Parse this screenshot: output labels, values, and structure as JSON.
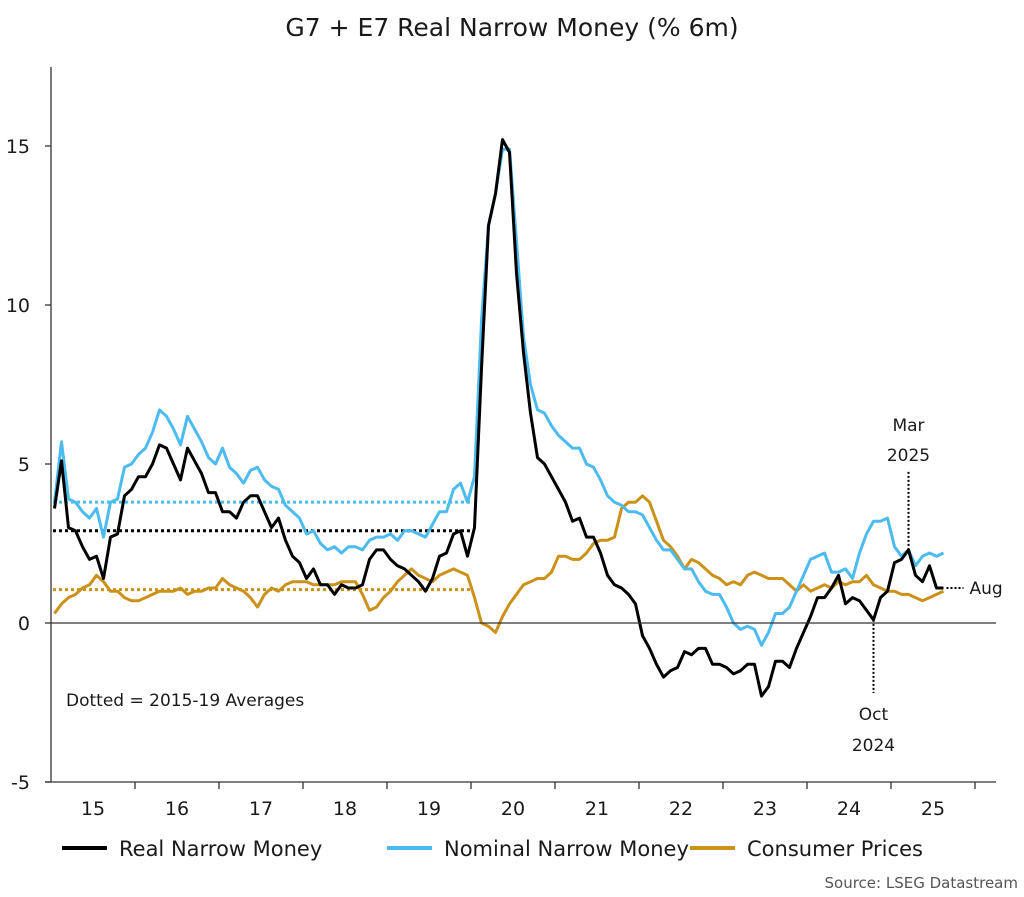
{
  "chart_data": {
    "type": "line",
    "title": "G7 + E7 Real Narrow Money (% 6m)",
    "xlabel": "",
    "ylabel": "",
    "x_start": "2015-01",
    "x_end": "2025-08",
    "frequency": "monthly",
    "ylim": [
      -5,
      17.5
    ],
    "yticks": [
      -5,
      0,
      5,
      10,
      15
    ],
    "ytick_labels": [
      "-5",
      "0",
      "5",
      "10",
      "15"
    ],
    "xtick_labels": [
      "15",
      "16",
      "17",
      "18",
      "19",
      "20",
      "21",
      "22",
      "23",
      "24",
      "25"
    ],
    "grid": false,
    "legend_position": "bottom",
    "series": [
      {
        "name": "Real Narrow Money",
        "color": "#000000",
        "average_2015_19": 2.9,
        "values": [
          3.6,
          5.1,
          3.0,
          2.9,
          2.4,
          2.0,
          2.1,
          1.4,
          2.7,
          2.8,
          4.0,
          4.2,
          4.6,
          4.6,
          5.0,
          5.6,
          5.5,
          5.0,
          4.5,
          5.5,
          5.1,
          4.7,
          4.1,
          4.1,
          3.5,
          3.5,
          3.3,
          3.8,
          4.0,
          4.0,
          3.5,
          3.0,
          3.3,
          2.6,
          2.1,
          1.9,
          1.4,
          1.7,
          1.2,
          1.2,
          0.9,
          1.2,
          1.1,
          1.1,
          1.2,
          2.0,
          2.3,
          2.3,
          2.0,
          1.8,
          1.7,
          1.5,
          1.3,
          1.0,
          1.4,
          2.1,
          2.2,
          2.8,
          2.9,
          2.1,
          3.0,
          8.0,
          12.5,
          13.5,
          15.2,
          14.8,
          11.0,
          8.5,
          6.6,
          5.2,
          5.0,
          4.6,
          4.2,
          3.8,
          3.2,
          3.3,
          2.7,
          2.7,
          2.2,
          1.5,
          1.2,
          1.1,
          0.9,
          0.6,
          -0.4,
          -0.8,
          -1.3,
          -1.7,
          -1.5,
          -1.4,
          -0.9,
          -1.0,
          -0.8,
          -0.8,
          -1.3,
          -1.3,
          -1.4,
          -1.6,
          -1.5,
          -1.3,
          -1.3,
          -2.3,
          -2.0,
          -1.2,
          -1.2,
          -1.4,
          -0.8,
          -0.3,
          0.2,
          0.8,
          0.8,
          1.1,
          1.5,
          0.6,
          0.8,
          0.7,
          0.4,
          0.1,
          0.8,
          1.0,
          1.9,
          2.0,
          2.3,
          1.5,
          1.3,
          1.8,
          1.1,
          1.1
        ]
      },
      {
        "name": "Nominal Narrow Money",
        "color": "#4bbbf0",
        "average_2015_19": 3.8,
        "values": [
          3.8,
          5.7,
          3.9,
          3.8,
          3.5,
          3.3,
          3.6,
          2.7,
          3.8,
          3.9,
          4.9,
          5.0,
          5.3,
          5.5,
          6.0,
          6.7,
          6.5,
          6.1,
          5.6,
          6.5,
          6.1,
          5.7,
          5.2,
          5.0,
          5.5,
          4.9,
          4.7,
          4.4,
          4.8,
          4.9,
          4.5,
          4.3,
          4.2,
          3.7,
          3.5,
          3.3,
          2.8,
          2.9,
          2.5,
          2.3,
          2.4,
          2.2,
          2.4,
          2.4,
          2.3,
          2.6,
          2.7,
          2.7,
          2.8,
          2.6,
          2.9,
          2.9,
          2.8,
          2.7,
          3.1,
          3.5,
          3.5,
          4.2,
          4.4,
          3.8,
          4.6,
          9.5,
          12.5,
          13.5,
          14.9,
          14.9,
          12.0,
          9.0,
          7.5,
          6.7,
          6.6,
          6.2,
          5.9,
          5.7,
          5.5,
          5.5,
          5.0,
          4.9,
          4.5,
          4.0,
          3.8,
          3.7,
          3.5,
          3.5,
          3.4,
          3.0,
          2.6,
          2.3,
          2.3,
          2.0,
          1.7,
          1.7,
          1.3,
          1.0,
          0.9,
          0.9,
          0.5,
          0.0,
          -0.2,
          -0.1,
          -0.2,
          -0.7,
          -0.3,
          0.3,
          0.3,
          0.5,
          1.0,
          1.5,
          2.0,
          2.1,
          2.2,
          1.6,
          1.6,
          1.7,
          1.4,
          2.2,
          2.8,
          3.2,
          3.2,
          3.3,
          2.4,
          2.1,
          2.3,
          1.8,
          2.1,
          2.2,
          2.1,
          2.2
        ]
      },
      {
        "name": "Consumer Prices",
        "color": "#cc9118",
        "average_2015_19": 1.05,
        "values": [
          0.3,
          0.6,
          0.8,
          0.9,
          1.1,
          1.2,
          1.5,
          1.3,
          1.0,
          1.0,
          0.8,
          0.7,
          0.7,
          0.8,
          0.9,
          1.0,
          1.0,
          1.0,
          1.1,
          0.9,
          1.0,
          1.0,
          1.1,
          1.1,
          1.4,
          1.2,
          1.1,
          1.0,
          0.8,
          0.5,
          0.9,
          1.1,
          1.0,
          1.2,
          1.3,
          1.3,
          1.3,
          1.2,
          1.2,
          1.2,
          1.2,
          1.3,
          1.3,
          1.3,
          0.9,
          0.4,
          0.5,
          0.8,
          1.0,
          1.3,
          1.5,
          1.7,
          1.5,
          1.4,
          1.3,
          1.5,
          1.6,
          1.7,
          1.6,
          1.5,
          0.8,
          0.0,
          -0.1,
          -0.3,
          0.2,
          0.6,
          0.9,
          1.2,
          1.3,
          1.4,
          1.4,
          1.6,
          2.1,
          2.1,
          2.0,
          2.0,
          2.2,
          2.5,
          2.6,
          2.6,
          2.7,
          3.6,
          3.8,
          3.8,
          4.0,
          3.8,
          3.2,
          2.6,
          2.4,
          2.1,
          1.7,
          2.0,
          1.9,
          1.7,
          1.5,
          1.4,
          1.2,
          1.3,
          1.2,
          1.5,
          1.6,
          1.5,
          1.4,
          1.4,
          1.4,
          1.2,
          1.0,
          1.2,
          1.0,
          1.1,
          1.2,
          1.1,
          1.3,
          1.2,
          1.3,
          1.3,
          1.5,
          1.2,
          1.1,
          1.0,
          1.0,
          0.9,
          0.9,
          0.8,
          0.7,
          0.8,
          0.9,
          1.0
        ]
      }
    ],
    "annotations": [
      {
        "text": "Dotted = 2015-19 Averages",
        "x": "2015-02",
        "y": -2.4
      },
      {
        "text_lines": [
          "Mar",
          "2025"
        ],
        "date": "2025-03",
        "series": "Real Narrow Money",
        "placement": "above"
      },
      {
        "text_lines": [
          "Oct",
          "2024"
        ],
        "date": "2024-10",
        "series": "Real Narrow Money",
        "placement": "below"
      },
      {
        "text": "Aug",
        "date": "2025-08",
        "series": "Real Narrow Money",
        "placement": "right"
      }
    ],
    "source": "Source: LSEG Datastream"
  }
}
